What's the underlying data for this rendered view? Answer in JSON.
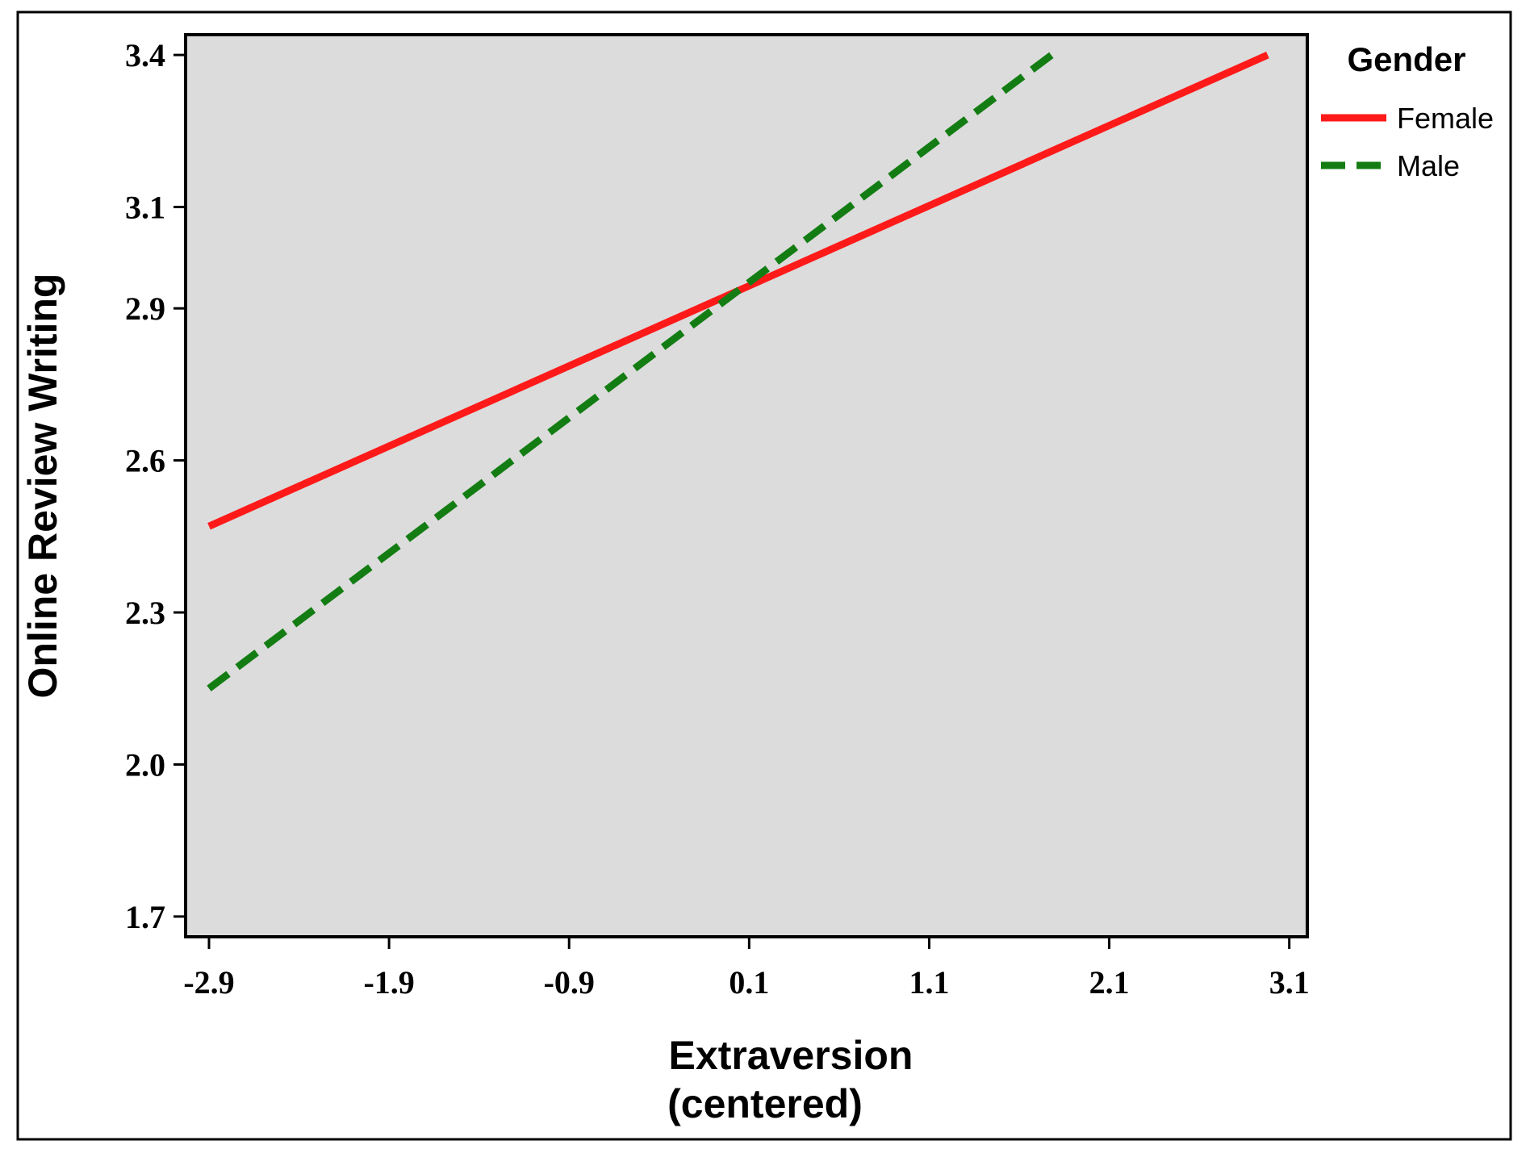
{
  "chart_data": {
    "type": "line",
    "title": "",
    "xlabel": [
      "Extraversion",
      "(centered)"
    ],
    "ylabel": "Online Review Writing",
    "xlim": [
      -3.03,
      3.2
    ],
    "ylim": [
      1.66,
      3.44
    ],
    "xticks": [
      -2.9,
      -1.9,
      -0.9,
      0.1,
      1.1,
      2.1,
      3.1
    ],
    "xtick_labels": [
      "-2.9",
      "-1.9",
      "-0.9",
      "0.1",
      "1.1",
      "2.1",
      "3.1"
    ],
    "yticks": [
      1.7,
      2.0,
      2.3,
      2.6,
      2.9,
      3.1,
      3.4
    ],
    "ytick_labels": [
      "1.7",
      "2.0",
      "2.3",
      "2.6",
      "2.9",
      "3.1",
      "3.4"
    ],
    "grid": false,
    "plot_background": "#dcdcdc",
    "legend": {
      "title": "Gender",
      "placement": "right"
    },
    "series": [
      {
        "name": "Female",
        "x": [
          -2.9,
          2.98
        ],
        "y": [
          2.47,
          3.4
        ],
        "color": "#ff1a1a",
        "dash": "solid"
      },
      {
        "name": "Male",
        "x": [
          -2.9,
          1.78
        ],
        "y": [
          2.15,
          3.4
        ],
        "color": "#137d13",
        "dash": "dashed"
      }
    ]
  }
}
